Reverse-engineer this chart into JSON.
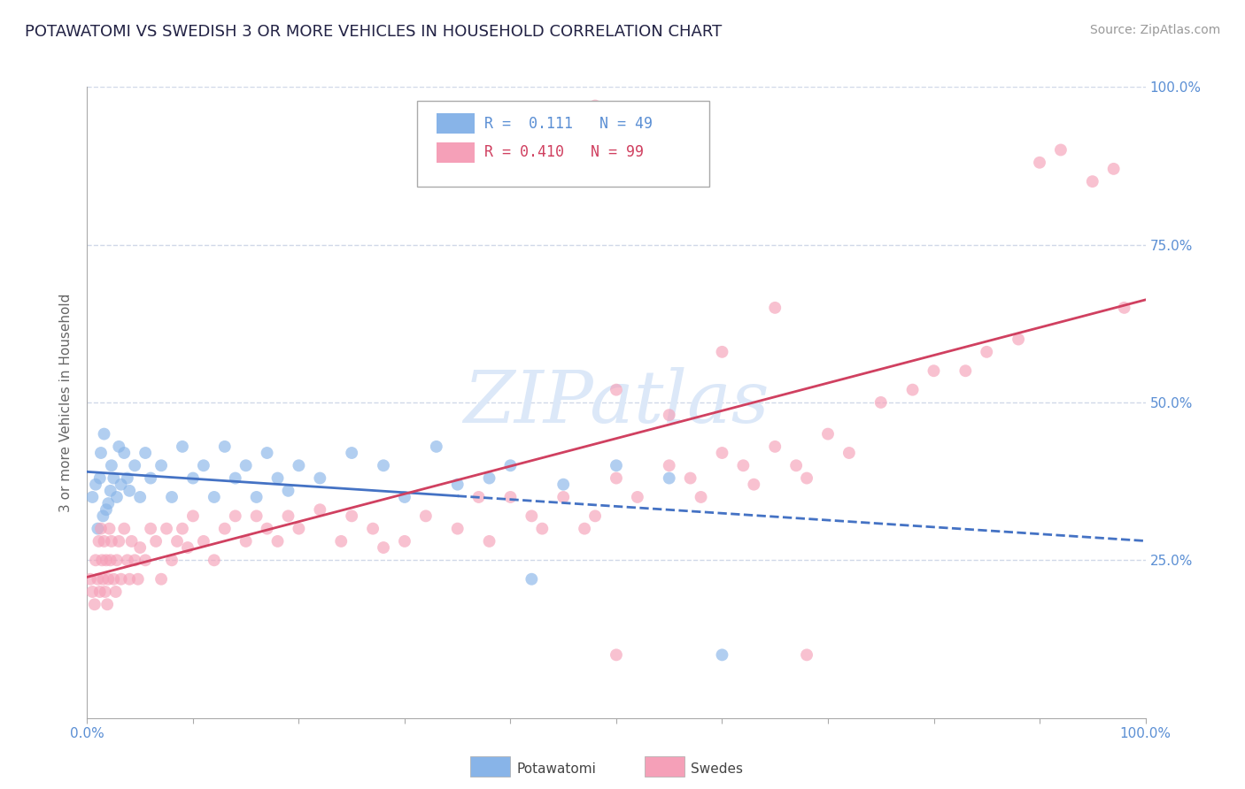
{
  "title": "POTAWATOMI VS SWEDISH 3 OR MORE VEHICLES IN HOUSEHOLD CORRELATION CHART",
  "source_text": "Source: ZipAtlas.com",
  "ylabel": "3 or more Vehicles in Household",
  "xlim": [
    0,
    100
  ],
  "ylim": [
    0,
    100
  ],
  "legend_labels": [
    "Potawatomi",
    "Swedes"
  ],
  "r_potawatomi": "0.111",
  "n_potawatomi": "49",
  "r_swedes": "0.410",
  "n_swedes": "99",
  "potawatomi_color": "#88b4e8",
  "swedes_color": "#f5a0b8",
  "potawatomi_line_color": "#4472c4",
  "swedes_line_color": "#d04060",
  "watermark": "ZIPatlas",
  "watermark_color": "#dce8f8",
  "background_color": "#ffffff",
  "grid_color": "#d0d8e8",
  "tick_label_color": "#5b8fd4",
  "potawatomi_x": [
    0.5,
    0.8,
    1.0,
    1.2,
    1.3,
    1.5,
    1.6,
    1.8,
    2.0,
    2.2,
    2.3,
    2.5,
    2.8,
    3.0,
    3.2,
    3.5,
    3.8,
    4.0,
    4.5,
    5.0,
    5.5,
    6.0,
    7.0,
    8.0,
    9.0,
    10.0,
    11.0,
    12.0,
    13.0,
    14.0,
    15.0,
    16.0,
    17.0,
    18.0,
    19.0,
    20.0,
    22.0,
    25.0,
    28.0,
    30.0,
    33.0,
    35.0,
    38.0,
    40.0,
    42.0,
    45.0,
    50.0,
    55.0,
    60.0
  ],
  "potawatomi_y": [
    35.0,
    37.0,
    30.0,
    38.0,
    42.0,
    32.0,
    45.0,
    33.0,
    34.0,
    36.0,
    40.0,
    38.0,
    35.0,
    43.0,
    37.0,
    42.0,
    38.0,
    36.0,
    40.0,
    35.0,
    42.0,
    38.0,
    40.0,
    35.0,
    43.0,
    38.0,
    40.0,
    35.0,
    43.0,
    38.0,
    40.0,
    35.0,
    42.0,
    38.0,
    36.0,
    40.0,
    38.0,
    42.0,
    40.0,
    35.0,
    43.0,
    37.0,
    38.0,
    40.0,
    22.0,
    37.0,
    40.0,
    38.0,
    10.0
  ],
  "swedes_x": [
    0.3,
    0.5,
    0.7,
    0.8,
    1.0,
    1.1,
    1.2,
    1.3,
    1.4,
    1.5,
    1.6,
    1.7,
    1.8,
    1.9,
    2.0,
    2.1,
    2.2,
    2.3,
    2.5,
    2.7,
    2.8,
    3.0,
    3.2,
    3.5,
    3.8,
    4.0,
    4.2,
    4.5,
    4.8,
    5.0,
    5.5,
    6.0,
    6.5,
    7.0,
    7.5,
    8.0,
    8.5,
    9.0,
    9.5,
    10.0,
    11.0,
    12.0,
    13.0,
    14.0,
    15.0,
    16.0,
    17.0,
    18.0,
    19.0,
    20.0,
    22.0,
    24.0,
    25.0,
    27.0,
    28.0,
    30.0,
    32.0,
    35.0,
    37.0,
    38.0,
    40.0,
    42.0,
    43.0,
    45.0,
    47.0,
    48.0,
    50.0,
    50.0,
    52.0,
    55.0,
    57.0,
    58.0,
    60.0,
    62.0,
    63.0,
    65.0,
    67.0,
    68.0,
    70.0,
    72.0,
    75.0,
    78.0,
    80.0,
    83.0,
    85.0,
    88.0,
    90.0,
    92.0,
    95.0,
    97.0,
    98.0,
    43.0,
    45.0,
    48.0,
    50.0,
    55.0,
    60.0,
    65.0,
    68.0
  ],
  "swedes_y": [
    22.0,
    20.0,
    18.0,
    25.0,
    22.0,
    28.0,
    20.0,
    30.0,
    25.0,
    22.0,
    28.0,
    20.0,
    25.0,
    18.0,
    22.0,
    30.0,
    25.0,
    28.0,
    22.0,
    20.0,
    25.0,
    28.0,
    22.0,
    30.0,
    25.0,
    22.0,
    28.0,
    25.0,
    22.0,
    27.0,
    25.0,
    30.0,
    28.0,
    22.0,
    30.0,
    25.0,
    28.0,
    30.0,
    27.0,
    32.0,
    28.0,
    25.0,
    30.0,
    32.0,
    28.0,
    32.0,
    30.0,
    28.0,
    32.0,
    30.0,
    33.0,
    28.0,
    32.0,
    30.0,
    27.0,
    28.0,
    32.0,
    30.0,
    35.0,
    28.0,
    35.0,
    32.0,
    30.0,
    35.0,
    30.0,
    32.0,
    38.0,
    10.0,
    35.0,
    40.0,
    38.0,
    35.0,
    42.0,
    40.0,
    37.0,
    43.0,
    40.0,
    38.0,
    45.0,
    42.0,
    50.0,
    52.0,
    55.0,
    55.0,
    58.0,
    60.0,
    88.0,
    90.0,
    85.0,
    87.0,
    65.0,
    92.0,
    93.0,
    97.0,
    52.0,
    48.0,
    58.0,
    65.0,
    10.0
  ]
}
